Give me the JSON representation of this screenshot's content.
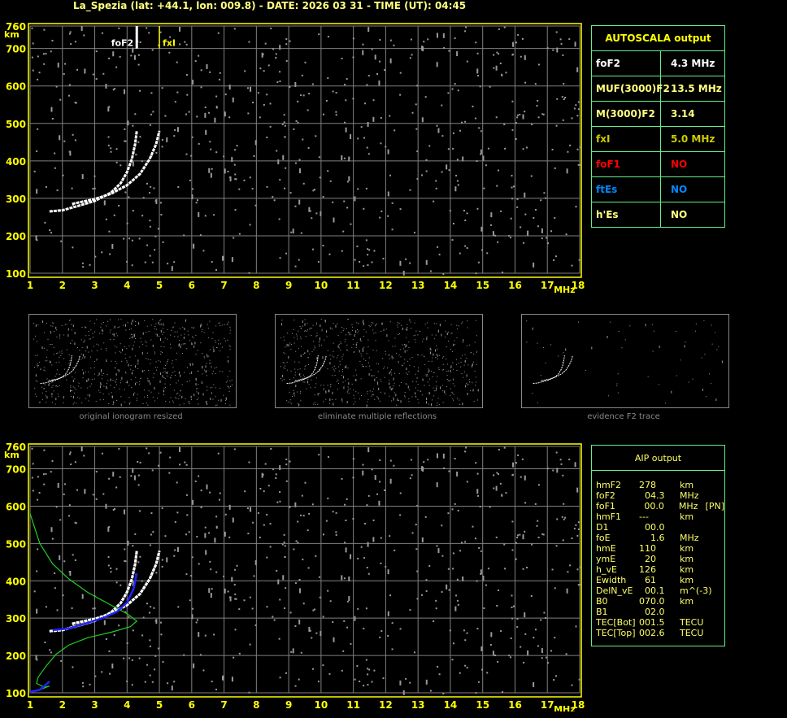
{
  "header": {
    "title": "La_Spezia (lat: +44.1, lon: 009.8) - DATE: 2026 03 31 - TIME (UT): 04:45"
  },
  "colors": {
    "axis": "#ffff00",
    "grid": "#808080",
    "trace": "#ffffff",
    "profile": "#22cc22",
    "fit": "#2222ff",
    "noise": "#9a9a9a"
  },
  "autoscala": {
    "title": "AUTOSCALA output",
    "rows": [
      {
        "key": "foF2",
        "value": "4.3 MHz",
        "color": "#ffffff"
      },
      {
        "key": "MUF(3000)F2",
        "value": "13.5 MHz",
        "color": "#ffff80"
      },
      {
        "key": "M(3000)F2",
        "value": "3.14",
        "color": "#ffff80"
      },
      {
        "key": "fxI",
        "value": "5.0 MHz",
        "color": "#cccc00"
      },
      {
        "key": "foF1",
        "value": "NO",
        "color": "#ff0000"
      },
      {
        "key": "ftEs",
        "value": "NO",
        "color": "#0088ff"
      },
      {
        "key": "h'Es",
        "value": "NO",
        "color": "#ffff80"
      }
    ]
  },
  "aip": {
    "title": "AIP output",
    "rows": [
      {
        "p": "hmF2",
        "v": "278",
        "u": "km",
        "x": ""
      },
      {
        "p": "foF2",
        "v": "  04.3",
        "u": "MHz",
        "x": ""
      },
      {
        "p": "foF1",
        "v": "  00.0",
        "u": "MHz",
        "x": "[PN]"
      },
      {
        "p": "hmF1",
        "v": "---",
        "u": "km",
        "x": ""
      },
      {
        "p": "D1",
        "v": "  00.0",
        "u": "",
        "x": ""
      },
      {
        "p": "foE",
        "v": "    1.6",
        "u": "MHz",
        "x": ""
      },
      {
        "p": "hmE",
        "v": "110",
        "u": "km",
        "x": ""
      },
      {
        "p": "ymE",
        "v": "  20",
        "u": "km",
        "x": ""
      },
      {
        "p": "h_vE",
        "v": "126",
        "u": "km",
        "x": ""
      },
      {
        "p": "Ewidth",
        "v": "  61",
        "u": "km",
        "x": ""
      },
      {
        "p": "DelN_vE",
        "v": "  00.1",
        "u": "m^(-3)",
        "x": ""
      },
      {
        "p": "B0",
        "v": "070.0",
        "u": "km",
        "x": ""
      },
      {
        "p": "B1",
        "v": "  02.0",
        "u": "",
        "x": ""
      },
      {
        "p": "TEC[Bot]",
        "v": "001.5",
        "u": "TECU",
        "x": ""
      },
      {
        "p": "TEC[Top]",
        "v": "002.6",
        "u": "TECU",
        "x": ""
      }
    ]
  },
  "thumbnails": [
    {
      "caption": "original ionogram resized"
    },
    {
      "caption": "eliminate multiple reflections"
    },
    {
      "caption": "evidence F2 trace"
    }
  ],
  "chart_data": [
    {
      "type": "scatter",
      "xlabel": "MHz",
      "ylabel": "km",
      "xlim": [
        1,
        18
      ],
      "ylim": [
        100,
        760
      ],
      "xticks": [
        "1",
        "2",
        "3",
        "4",
        "5",
        "6",
        "7",
        "8",
        "9",
        "10",
        "11",
        "12",
        "13",
        "14",
        "15",
        "16",
        "17",
        "18"
      ],
      "yticks": [
        "760",
        "700",
        "600",
        "500",
        "400",
        "300",
        "200",
        "100"
      ],
      "grid": true,
      "markers": [
        {
          "label": "foF2",
          "x": 4.3
        },
        {
          "label": "fxI",
          "x": 5.0
        }
      ],
      "o_trace": [
        [
          1.6,
          265
        ],
        [
          2,
          268
        ],
        [
          2.5,
          280
        ],
        [
          3,
          293
        ],
        [
          3.5,
          315
        ],
        [
          3.8,
          340
        ],
        [
          4.0,
          370
        ],
        [
          4.15,
          405
        ],
        [
          4.25,
          445
        ],
        [
          4.3,
          480
        ]
      ],
      "x_trace": [
        [
          2.3,
          285
        ],
        [
          3,
          298
        ],
        [
          3.5,
          312
        ],
        [
          4,
          335
        ],
        [
          4.4,
          365
        ],
        [
          4.7,
          405
        ],
        [
          4.9,
          445
        ],
        [
          5.0,
          480
        ]
      ]
    },
    {
      "type": "line",
      "xlabel": "MHz",
      "ylabel": "km",
      "xlim": [
        1,
        18
      ],
      "ylim": [
        100,
        760
      ],
      "grid": true,
      "profile": [
        [
          1.0,
          580
        ],
        [
          1.3,
          500
        ],
        [
          1.7,
          445
        ],
        [
          2.2,
          405
        ],
        [
          2.8,
          368
        ],
        [
          3.5,
          335
        ],
        [
          4.0,
          312
        ],
        [
          4.3,
          292
        ],
        [
          4.1,
          277
        ],
        [
          3.5,
          262
        ],
        [
          2.8,
          248
        ],
        [
          2.2,
          228
        ],
        [
          1.8,
          203
        ],
        [
          1.5,
          172
        ],
        [
          1.25,
          142
        ],
        [
          1.2,
          125
        ],
        [
          1.45,
          115
        ],
        [
          1.6,
          118
        ],
        [
          1.3,
          108
        ],
        [
          1.0,
          104
        ]
      ],
      "fit": [
        [
          1.7,
          268
        ],
        [
          2.2,
          272
        ],
        [
          2.8,
          288
        ],
        [
          3.3,
          302
        ],
        [
          3.7,
          318
        ],
        [
          4.0,
          342
        ],
        [
          4.2,
          378
        ],
        [
          4.3,
          420
        ]
      ],
      "fit_e": [
        [
          1.0,
          102
        ],
        [
          1.3,
          108
        ],
        [
          1.6,
          130
        ]
      ]
    }
  ]
}
